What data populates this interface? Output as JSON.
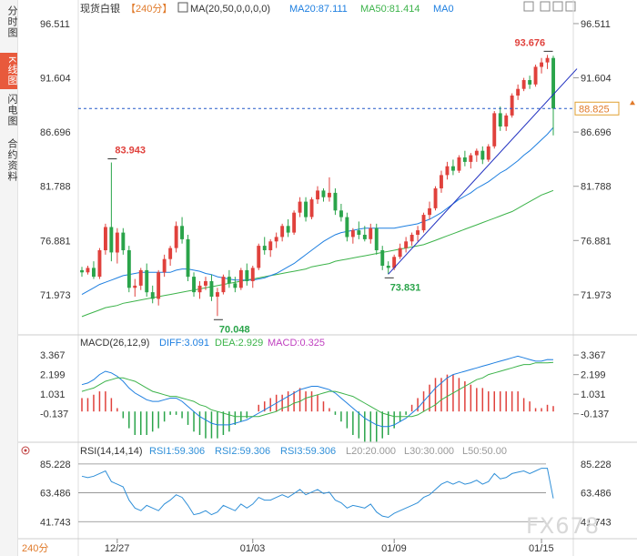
{
  "sidebar": {
    "tabs": [
      {
        "label": "分时图",
        "active": false
      },
      {
        "label": "K线图",
        "active": true
      },
      {
        "label": "闪电图",
        "active": false
      },
      {
        "label": "合约资料",
        "active": false
      }
    ]
  },
  "header": {
    "symbol": "现货白银",
    "timeframe": "【240分】",
    "ma_label": "MA(20,50,0,0,0,0)",
    "ma20": "MA20:87.111",
    "ma50": "MA50:81.414",
    "ma0": "MA0"
  },
  "macd_header": {
    "name": "MACD(26,12,9)",
    "diff": "DIFF:3.091",
    "dea": "DEA:2.929",
    "macd": "MACD:0.325"
  },
  "rsi_header": {
    "name": "RSI(14,14,14)",
    "rsi1": "RSI1:59.306",
    "rsi2": "RSI2:59.306",
    "rsi3": "RSI3:59.306",
    "l20": "L20:20.000",
    "l30": "L30:30.000",
    "l50": "L50:50.00"
  },
  "bottom_timeframe": "240分",
  "watermark": "FX678",
  "price_axis": [
    "96.511",
    "91.604",
    "86.696",
    "81.788",
    "76.881",
    "71.973"
  ],
  "macd_axis": [
    "3.367",
    "2.199",
    "1.031",
    "-0.137"
  ],
  "rsi_axis": [
    "85.228",
    "63.486",
    "41.743"
  ],
  "x_labels": [
    "12/27",
    "01/03",
    "01/09",
    "01/15"
  ],
  "current_price": "88.825",
  "annotations": {
    "high": "93.676",
    "mid_high": "83.943",
    "low1": "70.048",
    "low2": "73.831"
  },
  "colors": {
    "up": "#e0413c",
    "down": "#2aa44a",
    "ma20": "#1e7fe0",
    "ma50": "#3cb34a",
    "trend": "#1f2fc0",
    "diff": "#1e7fe0",
    "dea": "#3cb34a",
    "rsi": "#2f8fd8",
    "accent": "#e85a3c"
  },
  "chart_data": [
    {
      "type": "candlestick",
      "title": "现货白银 240分",
      "ylim": [
        69.0,
        97.0
      ],
      "candles": [
        [
          74.2,
          74.5,
          73.6,
          74.0
        ],
        [
          74.0,
          74.6,
          73.8,
          74.4
        ],
        [
          74.4,
          75.0,
          73.4,
          73.6
        ],
        [
          73.6,
          76.2,
          73.4,
          76.0
        ],
        [
          76.0,
          78.4,
          75.6,
          78.1
        ],
        [
          78.1,
          83.943,
          75.0,
          75.8
        ],
        [
          75.8,
          78.0,
          74.8,
          77.6
        ],
        [
          77.6,
          78.0,
          75.6,
          76.0
        ],
        [
          76.0,
          76.4,
          72.2,
          72.6
        ],
        [
          72.6,
          73.4,
          71.8,
          72.8
        ],
        [
          72.8,
          74.4,
          72.4,
          74.2
        ],
        [
          74.2,
          74.8,
          71.8,
          72.2
        ],
        [
          72.2,
          72.8,
          71.2,
          71.6
        ],
        [
          71.6,
          74.2,
          71.0,
          74.0
        ],
        [
          74.0,
          75.6,
          73.6,
          75.2
        ],
        [
          75.2,
          76.4,
          74.6,
          76.2
        ],
        [
          76.2,
          78.6,
          75.8,
          78.2
        ],
        [
          78.2,
          79.0,
          76.6,
          77.0
        ],
        [
          77.0,
          77.4,
          73.2,
          73.6
        ],
        [
          73.6,
          74.0,
          71.8,
          72.2
        ],
        [
          72.2,
          73.2,
          71.6,
          72.8
        ],
        [
          72.8,
          73.6,
          72.4,
          73.2
        ],
        [
          73.2,
          73.8,
          71.4,
          71.8
        ],
        [
          71.8,
          72.6,
          70.048,
          72.2
        ],
        [
          72.2,
          73.8,
          72.0,
          73.6
        ],
        [
          73.6,
          74.2,
          72.6,
          73.0
        ],
        [
          73.0,
          73.6,
          72.2,
          72.6
        ],
        [
          72.6,
          74.4,
          72.4,
          74.2
        ],
        [
          74.2,
          74.8,
          72.8,
          73.2
        ],
        [
          73.2,
          74.6,
          72.6,
          74.4
        ],
        [
          74.4,
          76.6,
          74.2,
          76.4
        ],
        [
          76.4,
          77.2,
          75.6,
          76.0
        ],
        [
          76.0,
          77.0,
          75.4,
          76.8
        ],
        [
          76.8,
          77.6,
          76.2,
          77.2
        ],
        [
          77.2,
          78.4,
          76.8,
          78.2
        ],
        [
          78.2,
          78.8,
          77.2,
          77.6
        ],
        [
          77.6,
          79.6,
          77.4,
          79.4
        ],
        [
          79.4,
          80.8,
          79.0,
          80.4
        ],
        [
          80.4,
          80.8,
          78.6,
          79.0
        ],
        [
          79.0,
          80.8,
          78.8,
          80.6
        ],
        [
          80.6,
          81.8,
          80.2,
          81.4
        ],
        [
          81.4,
          81.6,
          80.4,
          80.8
        ],
        [
          80.8,
          82.6,
          80.4,
          81.2
        ],
        [
          81.2,
          81.6,
          79.2,
          79.6
        ],
        [
          79.6,
          80.2,
          78.6,
          79.0
        ],
        [
          79.0,
          79.4,
          76.8,
          77.2
        ],
        [
          77.2,
          78.0,
          76.6,
          77.8
        ],
        [
          77.8,
          78.6,
          77.0,
          77.4
        ],
        [
          77.4,
          78.2,
          76.8,
          77.0
        ],
        [
          77.0,
          78.4,
          76.6,
          78.0
        ],
        [
          78.0,
          78.4,
          75.6,
          76.0
        ],
        [
          76.0,
          76.4,
          74.2,
          74.6
        ],
        [
          74.6,
          75.0,
          73.831,
          74.4
        ],
        [
          74.4,
          75.6,
          74.2,
          75.4
        ],
        [
          75.4,
          76.6,
          75.2,
          76.2
        ],
        [
          76.2,
          77.2,
          75.8,
          76.8
        ],
        [
          76.8,
          77.6,
          76.4,
          77.4
        ],
        [
          77.4,
          78.2,
          76.8,
          77.8
        ],
        [
          77.8,
          79.4,
          77.6,
          79.2
        ],
        [
          79.2,
          80.4,
          78.8,
          79.8
        ],
        [
          79.8,
          81.8,
          79.6,
          81.6
        ],
        [
          81.6,
          83.2,
          81.2,
          82.8
        ],
        [
          82.8,
          84.0,
          82.4,
          83.6
        ],
        [
          83.6,
          84.2,
          82.8,
          83.2
        ],
        [
          83.2,
          84.6,
          83.0,
          84.4
        ],
        [
          84.4,
          85.0,
          83.6,
          84.0
        ],
        [
          84.0,
          84.8,
          83.4,
          84.6
        ],
        [
          84.6,
          85.2,
          84.0,
          85.0
        ],
        [
          85.0,
          85.4,
          83.8,
          84.2
        ],
        [
          84.2,
          85.6,
          84.0,
          85.4
        ],
        [
          85.4,
          88.6,
          85.2,
          88.4
        ],
        [
          88.4,
          89.0,
          86.8,
          87.2
        ],
        [
          87.2,
          88.4,
          86.8,
          88.2
        ],
        [
          88.2,
          90.2,
          88.0,
          90.0
        ],
        [
          90.0,
          91.0,
          89.6,
          90.6
        ],
        [
          90.6,
          91.6,
          90.4,
          91.4
        ],
        [
          91.4,
          91.8,
          90.6,
          91.0
        ],
        [
          91.0,
          92.8,
          90.8,
          92.6
        ],
        [
          92.6,
          93.4,
          92.0,
          93.0
        ],
        [
          93.0,
          93.676,
          92.4,
          93.4
        ],
        [
          93.4,
          93.6,
          86.4,
          88.825
        ]
      ],
      "series": [
        {
          "name": "MA20",
          "values": [
            72.0,
            72.3,
            72.6,
            72.9,
            73.1,
            73.3,
            73.5,
            73.7,
            73.8,
            73.9,
            74.0,
            74.0,
            74.0,
            74.0,
            74.0,
            74.0,
            74.2,
            74.3,
            74.3,
            74.2,
            74.1,
            73.9,
            73.8,
            73.6,
            73.5,
            73.4,
            73.3,
            73.3,
            73.3,
            73.3,
            73.4,
            73.5,
            73.7,
            73.9,
            74.2,
            74.5,
            74.8,
            75.2,
            75.6,
            76.0,
            76.4,
            76.8,
            77.1,
            77.4,
            77.6,
            77.7,
            77.8,
            77.9,
            78.0,
            78.0,
            78.0,
            78.0,
            78.0,
            78.0,
            78.1,
            78.2,
            78.3,
            78.4,
            78.6,
            78.8,
            79.1,
            79.4,
            79.8,
            80.2,
            80.6,
            80.9,
            81.2,
            81.6,
            81.9,
            82.2,
            82.6,
            83.0,
            83.3,
            83.7,
            84.1,
            84.6,
            85.0,
            85.5,
            86.0,
            86.5,
            87.111
          ]
        },
        {
          "name": "MA50",
          "values": [
            70.0,
            70.2,
            70.4,
            70.6,
            70.8,
            70.9,
            71.0,
            71.2,
            71.3,
            71.4,
            71.5,
            71.6,
            71.7,
            71.8,
            71.9,
            72.0,
            72.1,
            72.2,
            72.3,
            72.4,
            72.5,
            72.6,
            72.7,
            72.8,
            72.9,
            73.0,
            73.1,
            73.2,
            73.3,
            73.4,
            73.5,
            73.6,
            73.7,
            73.8,
            73.9,
            74.0,
            74.1,
            74.2,
            74.3,
            74.5,
            74.6,
            74.7,
            74.8,
            75.0,
            75.1,
            75.2,
            75.3,
            75.4,
            75.5,
            75.6,
            75.7,
            75.8,
            75.9,
            76.0,
            76.1,
            76.2,
            76.3,
            76.4,
            76.5,
            76.7,
            76.9,
            77.1,
            77.3,
            77.5,
            77.7,
            77.9,
            78.1,
            78.3,
            78.5,
            78.7,
            78.9,
            79.1,
            79.3,
            79.5,
            79.8,
            80.1,
            80.4,
            80.7,
            81.0,
            81.2,
            81.414
          ]
        }
      ],
      "trendline": [
        [
          52,
          73.831
        ],
        [
          80,
          91.6
        ]
      ]
    },
    {
      "type": "bar+line",
      "title": "MACD(26,12,9)",
      "ylim": [
        -1.4,
        3.7
      ],
      "series": [
        {
          "name": "DIFF",
          "values": [
            1.6,
            1.7,
            1.9,
            2.2,
            2.4,
            2.3,
            2.1,
            1.8,
            1.4,
            1.1,
            0.9,
            0.7,
            0.6,
            0.6,
            0.7,
            0.8,
            0.8,
            0.6,
            0.3,
            0.0,
            -0.3,
            -0.5,
            -0.7,
            -0.8,
            -0.8,
            -0.8,
            -0.7,
            -0.6,
            -0.5,
            -0.3,
            -0.1,
            0.1,
            0.3,
            0.5,
            0.7,
            0.9,
            1.1,
            1.3,
            1.4,
            1.5,
            1.5,
            1.4,
            1.3,
            1.1,
            0.8,
            0.5,
            0.2,
            -0.1,
            -0.4,
            -0.6,
            -0.8,
            -0.9,
            -0.9,
            -0.8,
            -0.6,
            -0.4,
            -0.1,
            0.2,
            0.6,
            1.0,
            1.4,
            1.7,
            2.0,
            2.2,
            2.3,
            2.4,
            2.5,
            2.6,
            2.7,
            2.8,
            2.9,
            3.0,
            3.1,
            3.2,
            3.3,
            3.2,
            3.1,
            3.0,
            3.0,
            3.1,
            3.091
          ]
        },
        {
          "name": "DEA",
          "values": [
            1.2,
            1.3,
            1.4,
            1.6,
            1.8,
            1.9,
            2.0,
            2.0,
            1.9,
            1.8,
            1.6,
            1.4,
            1.2,
            1.1,
            1.0,
            0.9,
            0.9,
            0.8,
            0.7,
            0.6,
            0.4,
            0.3,
            0.1,
            0.0,
            -0.1,
            -0.2,
            -0.3,
            -0.3,
            -0.3,
            -0.3,
            -0.3,
            -0.2,
            -0.1,
            0.0,
            0.2,
            0.3,
            0.5,
            0.6,
            0.8,
            0.9,
            1.0,
            1.1,
            1.2,
            1.2,
            1.1,
            1.0,
            0.9,
            0.7,
            0.5,
            0.3,
            0.1,
            -0.1,
            -0.2,
            -0.3,
            -0.3,
            -0.3,
            -0.3,
            -0.2,
            0.0,
            0.2,
            0.4,
            0.7,
            0.9,
            1.1,
            1.3,
            1.5,
            1.7,
            1.9,
            2.0,
            2.2,
            2.3,
            2.4,
            2.5,
            2.6,
            2.7,
            2.8,
            2.8,
            2.9,
            2.9,
            2.9,
            2.929
          ]
        }
      ]
    },
    {
      "type": "line",
      "title": "RSI(14,14,14)",
      "ylim": [
        33.0,
        92.0
      ],
      "reference_lines": [
        85.228,
        63.486,
        41.743
      ],
      "series": [
        {
          "name": "RSI1",
          "values": [
            76,
            75,
            76,
            78,
            80,
            72,
            70,
            68,
            58,
            52,
            50,
            54,
            52,
            50,
            55,
            58,
            62,
            60,
            54,
            47,
            48,
            50,
            47,
            49,
            54,
            52,
            50,
            55,
            52,
            55,
            60,
            58,
            58,
            60,
            62,
            60,
            63,
            66,
            62,
            64,
            66,
            63,
            64,
            58,
            56,
            52,
            54,
            53,
            52,
            55,
            49,
            46,
            45,
            48,
            50,
            52,
            54,
            56,
            60,
            62,
            66,
            70,
            72,
            70,
            72,
            70,
            71,
            73,
            70,
            72,
            78,
            74,
            75,
            78,
            79,
            80,
            78,
            80,
            82,
            82,
            59.306
          ]
        }
      ]
    }
  ]
}
